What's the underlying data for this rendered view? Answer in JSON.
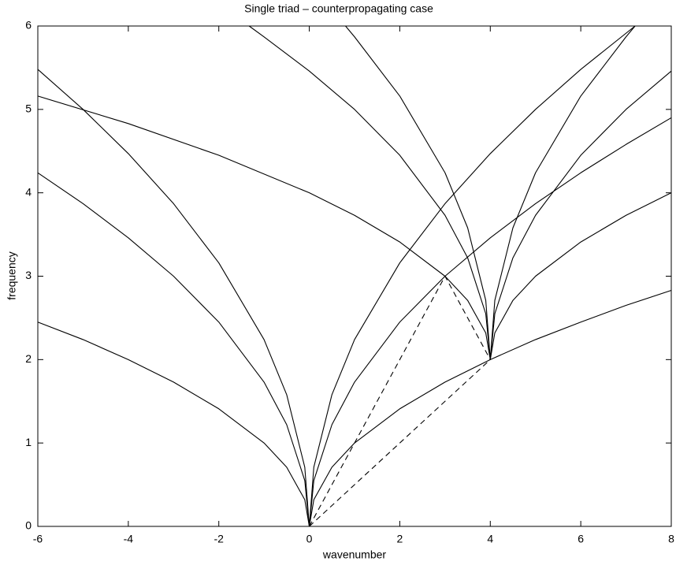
{
  "chart_data": {
    "type": "line",
    "title": "Single triad – counterpropagating case",
    "x_label": "wavenumber",
    "y_label": "frequency",
    "xlim": [
      -6,
      8
    ],
    "ylim": [
      0,
      6
    ],
    "xticks": [
      -6,
      -4,
      -2,
      0,
      2,
      4,
      6,
      8
    ],
    "yticks": [
      0,
      1,
      2,
      3,
      4,
      5,
      6
    ],
    "series": [
      {
        "color": "#000000",
        "dash": false,
        "x": [
          -6,
          -5,
          -4,
          -3,
          -2,
          -1,
          -0.5,
          -0.1,
          0,
          0.1,
          0.5,
          1,
          2,
          3,
          4,
          5,
          6,
          7,
          8
        ],
        "values": [
          2.45,
          2.24,
          2,
          1.73,
          1.41,
          1,
          0.71,
          0.32,
          0,
          0.32,
          0.71,
          1,
          1.41,
          1.73,
          2,
          2.24,
          2.45,
          2.65,
          2.83
        ]
      },
      {
        "color": "#000000",
        "dash": false,
        "x": [
          -6,
          -5,
          -4,
          -3,
          -2,
          -1,
          -0.5,
          -0.1,
          0,
          0.1,
          0.5,
          1,
          2,
          3,
          4,
          5,
          6,
          7,
          8
        ],
        "values": [
          4.24,
          3.87,
          3.46,
          3,
          2.45,
          1.73,
          1.22,
          0.55,
          0,
          0.55,
          1.22,
          1.73,
          2.45,
          3,
          3.46,
          3.87,
          4.24,
          4.58,
          4.9
        ]
      },
      {
        "color": "#000000",
        "dash": false,
        "x": [
          -6,
          -5,
          -4,
          -3,
          -2,
          -1,
          -0.5,
          -0.1,
          0,
          0.1,
          0.5,
          1,
          2,
          3,
          4,
          5,
          6,
          7.2
        ],
        "values": [
          5.48,
          5,
          4.47,
          3.87,
          3.16,
          2.24,
          1.58,
          0.71,
          0,
          0.71,
          1.58,
          2.24,
          3.16,
          3.87,
          4.47,
          5,
          5.48,
          6
        ]
      },
      {
        "color": "#000000",
        "dash": false,
        "x": [
          -6,
          -4,
          -2,
          0,
          1,
          2,
          3,
          3.5,
          3.9,
          4,
          4.1,
          4.5,
          5,
          6,
          7,
          8
        ],
        "values": [
          5.16,
          4.83,
          4.45,
          4,
          3.73,
          3.41,
          3,
          2.71,
          2.32,
          2,
          2.32,
          2.71,
          3,
          3.41,
          3.73,
          4
        ]
      },
      {
        "color": "#000000",
        "dash": false,
        "x": [
          -1.33,
          -1,
          0,
          1,
          2,
          3,
          3.5,
          3.9,
          4,
          4.1,
          4.5,
          5,
          6,
          7,
          8
        ],
        "values": [
          6,
          5.87,
          5.46,
          5,
          4.45,
          3.73,
          3.22,
          2.55,
          2,
          2.55,
          3.22,
          3.73,
          4.45,
          5,
          5.46
        ]
      },
      {
        "color": "#000000",
        "dash": false,
        "x": [
          0.8,
          1,
          2,
          3,
          3.5,
          3.9,
          4,
          4.1,
          4.5,
          5,
          6,
          7,
          7.2
        ],
        "values": [
          6,
          5.87,
          5.16,
          4.24,
          3.58,
          2.71,
          2,
          2.71,
          3.58,
          4.24,
          5.16,
          5.87,
          6
        ]
      },
      {
        "color": "#000000",
        "dash": true,
        "x": [
          0,
          3,
          4
        ],
        "values": [
          0,
          3,
          2
        ]
      },
      {
        "color": "#000000",
        "dash": true,
        "x": [
          0,
          4
        ],
        "values": [
          0,
          2
        ]
      }
    ]
  }
}
